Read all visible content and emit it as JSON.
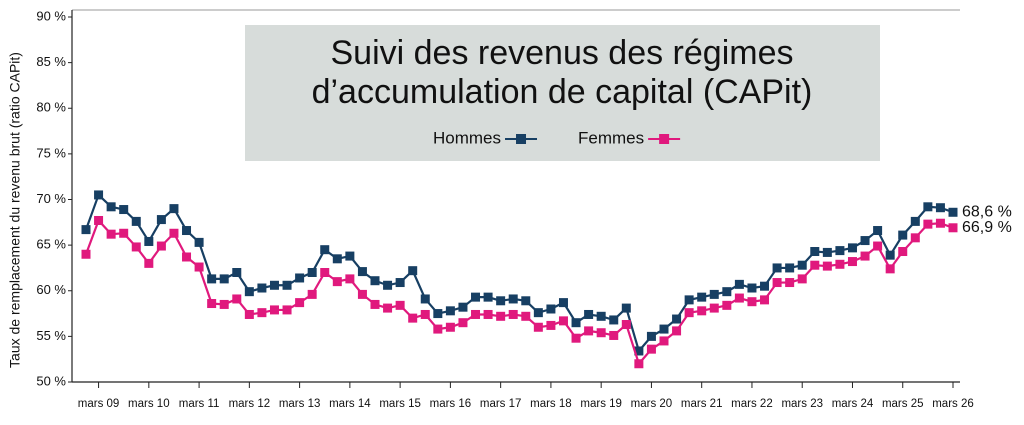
{
  "chart_data": {
    "type": "line",
    "title": [
      "Suivi des revenus des régimes",
      "d’accumulation de capital (CAPit)"
    ],
    "y_label": "Taux de remplacement du revenu brut (ratio CAPit)",
    "categories": [
      null,
      "mars 09",
      null,
      null,
      null,
      "mars 10",
      null,
      null,
      null,
      "mars 11",
      null,
      null,
      null,
      "mars 12",
      null,
      null,
      null,
      "mars 13",
      null,
      null,
      null,
      "mars 14",
      null,
      null,
      null,
      "mars 15",
      null,
      null,
      null,
      "mars 16",
      null,
      null,
      null,
      "mars 17",
      null,
      null,
      null,
      "mars 18",
      null,
      null,
      null,
      "mars 19",
      null,
      null,
      null,
      "mars 20",
      null,
      null,
      null,
      "mars 21",
      null,
      null,
      null,
      "mars 22",
      null,
      null,
      null,
      "mars 23",
      null,
      null,
      null,
      "mars 24",
      null,
      null,
      null,
      "mars 25",
      null,
      null,
      null,
      "mars 26"
    ],
    "series": [
      {
        "name": "Hommes",
        "color": "#173f63",
        "values": [
          66.7,
          70.5,
          69.2,
          68.9,
          67.6,
          65.4,
          67.8,
          69.0,
          66.6,
          65.3,
          61.3,
          61.3,
          62.0,
          59.9,
          60.3,
          60.6,
          60.6,
          61.4,
          62.0,
          64.5,
          63.5,
          63.8,
          62.1,
          61.1,
          60.6,
          60.9,
          62.2,
          59.1,
          57.5,
          57.8,
          58.2,
          59.3,
          59.3,
          58.9,
          59.1,
          58.9,
          57.6,
          58.0,
          58.7,
          56.5,
          57.4,
          57.2,
          56.8,
          58.1,
          53.4,
          55.0,
          55.8,
          56.9,
          59.0,
          59.3,
          59.6,
          59.9,
          60.7,
          60.3,
          60.5,
          62.5,
          62.5,
          62.8,
          64.3,
          64.2,
          64.4,
          64.7,
          65.5,
          66.6,
          63.9,
          66.1,
          67.6,
          69.2,
          69.1,
          68.6
        ],
        "value_labels": [
          null,
          null,
          null,
          null,
          null,
          null,
          null,
          null,
          null,
          null,
          null,
          null,
          null,
          null,
          null,
          null,
          null,
          null,
          null,
          null,
          null,
          null,
          null,
          null,
          null,
          null,
          null,
          null,
          null,
          null,
          null,
          null,
          null,
          null,
          null,
          null,
          null,
          null,
          null,
          null,
          null,
          null,
          null,
          null,
          null,
          null,
          null,
          null,
          null,
          null,
          null,
          null,
          null,
          null,
          null,
          null,
          null,
          null,
          null,
          null,
          null,
          null,
          null,
          null,
          null,
          null,
          null,
          null,
          null,
          "68,6 %"
        ]
      },
      {
        "name": "Femmes",
        "color": "#e0197d",
        "values": [
          64.0,
          67.7,
          66.2,
          66.3,
          64.8,
          63.0,
          64.9,
          66.3,
          63.7,
          62.6,
          58.6,
          58.5,
          59.1,
          57.4,
          57.6,
          57.9,
          57.9,
          58.7,
          59.6,
          62.0,
          61.0,
          61.3,
          59.6,
          58.5,
          58.1,
          58.4,
          57.0,
          57.4,
          55.8,
          56.0,
          56.5,
          57.4,
          57.4,
          57.2,
          57.4,
          57.2,
          56.0,
          56.2,
          56.7,
          54.8,
          55.6,
          55.4,
          55.1,
          56.3,
          52.0,
          53.6,
          54.5,
          55.6,
          57.6,
          57.8,
          58.1,
          58.4,
          59.2,
          58.8,
          59.0,
          60.9,
          60.9,
          61.3,
          62.8,
          62.7,
          62.9,
          63.2,
          63.8,
          64.9,
          62.4,
          64.3,
          65.8,
          67.3,
          67.4,
          66.9
        ],
        "value_labels": [
          null,
          null,
          null,
          null,
          null,
          null,
          null,
          null,
          null,
          null,
          null,
          null,
          null,
          null,
          null,
          null,
          null,
          null,
          null,
          null,
          null,
          null,
          null,
          null,
          null,
          null,
          null,
          null,
          null,
          null,
          null,
          null,
          null,
          null,
          null,
          null,
          null,
          null,
          null,
          null,
          null,
          null,
          null,
          null,
          null,
          null,
          null,
          null,
          null,
          null,
          null,
          null,
          null,
          null,
          null,
          null,
          null,
          null,
          null,
          null,
          null,
          null,
          null,
          null,
          null,
          null,
          null,
          null,
          null,
          "66,9 %"
        ]
      }
    ],
    "ylim": [
      50,
      90
    ],
    "yticks": [
      {
        "value": 50,
        "label": "50 %"
      },
      {
        "value": 55,
        "label": "55 %"
      },
      {
        "value": 60,
        "label": "60 %"
      },
      {
        "value": 65,
        "label": "65 %"
      },
      {
        "value": 70,
        "label": "70 %"
      },
      {
        "value": 75,
        "label": "75 %"
      },
      {
        "value": 80,
        "label": "80 %"
      },
      {
        "value": 85,
        "label": "85 %"
      },
      {
        "value": 90,
        "label": "90 %"
      }
    ],
    "grid": false
  }
}
